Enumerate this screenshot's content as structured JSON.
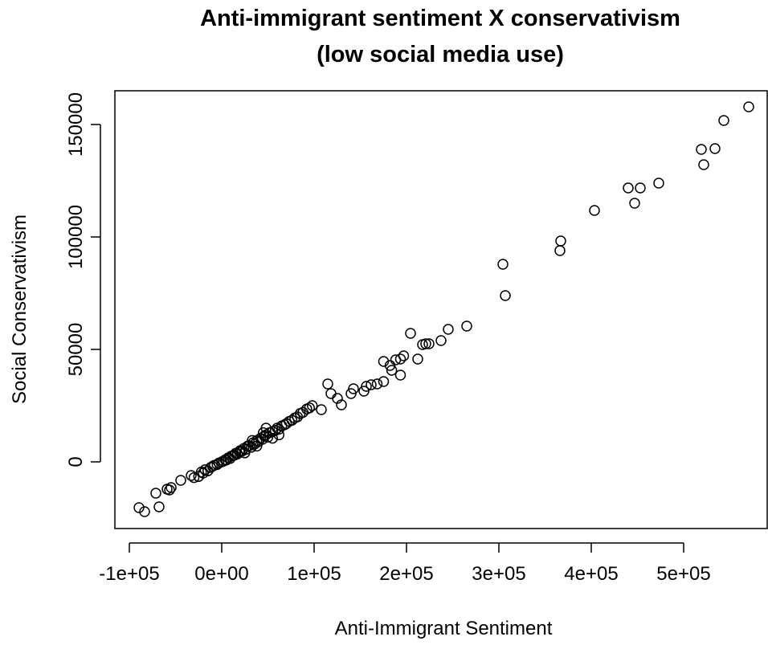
{
  "chart_data": {
    "type": "scatter",
    "title": "Anti-immigrant sentiment X conservativism",
    "subtitle": "(low social media use)",
    "x_label": "Anti-Immigrant Sentiment",
    "y_label": "Social Conservativism",
    "xlim": [
      -115652,
      590435
    ],
    "ylim": [
      -29643,
      165000
    ],
    "xticks": [
      {
        "value": -100000,
        "label": "-1e+05"
      },
      {
        "value": 0,
        "label": "0e+00"
      },
      {
        "value": 100000,
        "label": "1e+05"
      },
      {
        "value": 200000,
        "label": "2e+05"
      },
      {
        "value": 300000,
        "label": "3e+05"
      },
      {
        "value": 400000,
        "label": "4e+05"
      },
      {
        "value": 500000,
        "label": "5e+05"
      }
    ],
    "yticks": [
      0,
      50000,
      100000,
      150000
    ],
    "color": "#000000",
    "series": [
      {
        "name": "points",
        "x": [
          570435,
          543478,
          519130,
          521739,
          533913,
          473043,
          440000,
          453043,
          446957,
          403478,
          366957,
          366087,
          304348,
          306957,
          265217,
          245217,
          204348,
          237391,
          224348,
          217391,
          220870,
          196957,
          193478,
          188261,
          175217,
          182174,
          212174,
          184000,
          193478,
          175217,
          168261,
          161739,
          156522,
          153913,
          142609,
          140000,
          114783,
          118261,
          125217,
          129565,
          107826,
          -89565,
          -83478,
          -67826,
          -71304,
          -59130,
          -54783,
          -56522,
          -44348,
          -33043,
          -30000,
          -25000,
          -22000,
          -20000,
          -18000,
          -15000,
          -12000,
          -10000,
          -8000,
          -5000,
          -3000,
          0,
          2000,
          4000,
          5000,
          7000,
          9000,
          10000,
          12000,
          14000,
          15000,
          17000,
          19000,
          20000,
          22000,
          24000,
          26000,
          28000,
          30000,
          32000,
          34000,
          36000,
          38000,
          40000,
          42000,
          44000,
          46000,
          48000,
          50000,
          52000,
          55000,
          58000,
          60000,
          62000,
          65000,
          68000,
          70000,
          73000,
          76000,
          79000,
          82000,
          85000,
          88000,
          92000,
          95000,
          98000,
          38000,
          45000,
          33000,
          25000,
          55000,
          62000,
          48000
        ],
        "values": [
          157857,
          151786,
          138929,
          132143,
          139286,
          123929,
          121786,
          121786,
          115000,
          111786,
          98214,
          93929,
          87857,
          73929,
          60357,
          58929,
          57143,
          53929,
          52500,
          52143,
          52500,
          47143,
          45714,
          45357,
          44643,
          42857,
          45714,
          40714,
          38571,
          35714,
          34643,
          34286,
          33571,
          31429,
          32500,
          30357,
          34643,
          30357,
          28214,
          25357,
          23214,
          -20357,
          -22143,
          -20000,
          -13929,
          -12143,
          -11429,
          -12500,
          -8214,
          -6071,
          -7000,
          -6500,
          -4500,
          -5000,
          -3500,
          -4000,
          -2500,
          -2000,
          -1500,
          -1200,
          -500,
          0,
          300,
          1000,
          800,
          1800,
          1500,
          2500,
          2800,
          3000,
          3800,
          3500,
          4500,
          5000,
          4800,
          6000,
          5500,
          7000,
          7200,
          6500,
          8500,
          8000,
          9500,
          9000,
          10500,
          10000,
          11500,
          12000,
          11000,
          13000,
          13500,
          14000,
          15000,
          14500,
          16000,
          16500,
          17000,
          18000,
          18500,
          19500,
          20000,
          21500,
          22000,
          23500,
          24000,
          25000,
          7000,
          13000,
          9500,
          4000,
          10500,
          12000,
          15000
        ]
      }
    ]
  }
}
